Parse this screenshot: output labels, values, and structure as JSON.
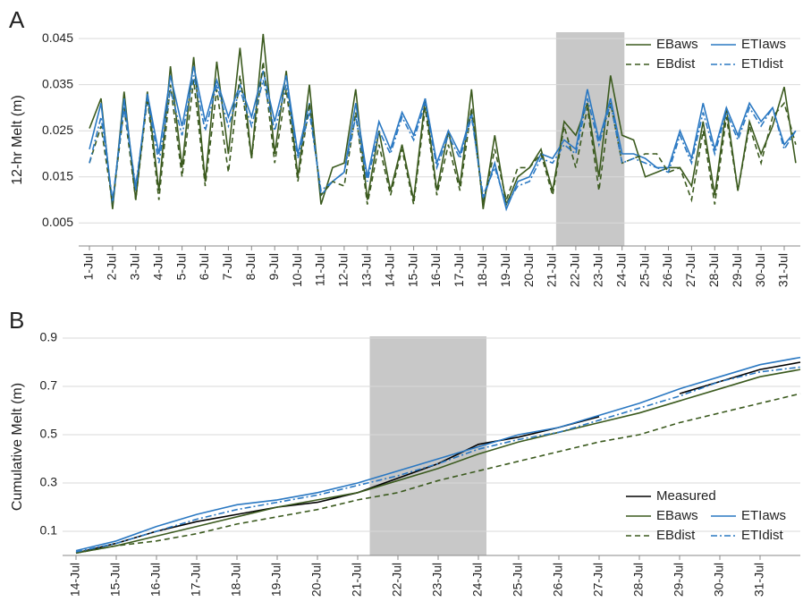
{
  "chart_data": [
    {
      "type": "line",
      "panel_label": "A",
      "y_label": "12-hr Melt (m)",
      "categories": [
        "1-Jul",
        null,
        "2-Jul",
        null,
        "3-Jul",
        null,
        "4-Jul",
        null,
        "5-Jul",
        null,
        "6-Jul",
        null,
        "7-Jul",
        null,
        "8-Jul",
        null,
        "9-Jul",
        null,
        "10-Jul",
        null,
        "11-Jul",
        null,
        "12-Jul",
        null,
        "13-Jul",
        null,
        "14-Jul",
        null,
        "15-Jul",
        null,
        "16-Jul",
        null,
        "17-Jul",
        null,
        "18-Jul",
        null,
        "19-Jul",
        null,
        "20-Jul",
        null,
        "21-Jul",
        null,
        "22-Jul",
        null,
        "23-Jul",
        null,
        "24-Jul",
        null,
        "25-Jul",
        null,
        "26-Jul",
        null,
        "27-Jul",
        null,
        "28-Jul",
        null,
        "29-Jul",
        null,
        "30-Jul",
        null,
        "31-Jul",
        null
      ],
      "ylim": [
        0,
        0.046
      ],
      "yticks": [
        0.005,
        0.015,
        0.025,
        0.035,
        0.045
      ],
      "grid": true,
      "legend": "top right",
      "shade": [
        40.3,
        46.2
      ],
      "series": [
        {
          "name": "EBaws",
          "color": "#3b5a1e",
          "linestyle": "solid",
          "values": [
            0.0255,
            0.032,
            0.008,
            0.0335,
            0.01,
            0.0335,
            0.012,
            0.039,
            0.017,
            0.041,
            0.014,
            0.04,
            0.02,
            0.043,
            0.019,
            0.046,
            0.02,
            0.038,
            0.015,
            0.035,
            0.009,
            0.017,
            0.018,
            0.034,
            0.01,
            0.025,
            0.012,
            0.022,
            0.01,
            0.032,
            0.012,
            0.025,
            0.013,
            0.034,
            0.008,
            0.024,
            0.009,
            0.015,
            0.017,
            0.021,
            0.012,
            0.027,
            0.024,
            0.031,
            0.015,
            0.037,
            0.024,
            0.023,
            0.015,
            0.016,
            0.017,
            0.017,
            0.013,
            0.027,
            0.011,
            0.03,
            0.012,
            0.027,
            0.02,
            0.026,
            0.0345,
            0.018
          ]
        },
        {
          "name": "ETIaws",
          "color": "#2a78c2",
          "linestyle": "solid",
          "values": [
            0.021,
            0.031,
            0.009,
            0.032,
            0.012,
            0.033,
            0.02,
            0.037,
            0.026,
            0.039,
            0.027,
            0.036,
            0.028,
            0.035,
            0.028,
            0.038,
            0.027,
            0.037,
            0.02,
            0.031,
            0.011,
            0.014,
            0.016,
            0.031,
            0.015,
            0.027,
            0.021,
            0.029,
            0.024,
            0.032,
            0.018,
            0.025,
            0.02,
            0.029,
            0.01,
            0.018,
            0.008,
            0.014,
            0.015,
            0.02,
            0.019,
            0.023,
            0.021,
            0.034,
            0.023,
            0.032,
            0.02,
            0.02,
            0.019,
            0.017,
            0.017,
            0.025,
            0.019,
            0.031,
            0.021,
            0.03,
            0.024,
            0.031,
            0.027,
            0.03,
            0.022,
            0.025
          ]
        },
        {
          "name": "EBdist",
          "color": "#3b5a1e",
          "linestyle": "dashed",
          "values": [
            0.018,
            0.026,
            0.009,
            0.03,
            0.01,
            0.032,
            0.01,
            0.035,
            0.015,
            0.036,
            0.013,
            0.034,
            0.016,
            0.037,
            0.019,
            0.04,
            0.018,
            0.034,
            0.014,
            0.031,
            0.011,
            0.014,
            0.013,
            0.029,
            0.009,
            0.022,
            0.011,
            0.021,
            0.009,
            0.03,
            0.011,
            0.022,
            0.012,
            0.03,
            0.009,
            0.021,
            0.01,
            0.017,
            0.017,
            0.02,
            0.011,
            0.026,
            0.017,
            0.03,
            0.012,
            0.031,
            0.018,
            0.019,
            0.02,
            0.02,
            0.016,
            0.017,
            0.01,
            0.025,
            0.009,
            0.028,
            0.012,
            0.026,
            0.018,
            0.028,
            0.031,
            0.022
          ]
        },
        {
          "name": "ETIdist",
          "color": "#2a78c2",
          "linestyle": "dashdot",
          "values": [
            0.018,
            0.028,
            0.01,
            0.03,
            0.013,
            0.032,
            0.018,
            0.034,
            0.024,
            0.037,
            0.025,
            0.035,
            0.026,
            0.034,
            0.026,
            0.036,
            0.025,
            0.035,
            0.019,
            0.029,
            0.012,
            0.014,
            0.016,
            0.028,
            0.014,
            0.025,
            0.02,
            0.028,
            0.023,
            0.031,
            0.017,
            0.024,
            0.019,
            0.028,
            0.011,
            0.017,
            0.009,
            0.013,
            0.014,
            0.019,
            0.018,
            0.022,
            0.02,
            0.032,
            0.022,
            0.031,
            0.018,
            0.019,
            0.018,
            0.017,
            0.016,
            0.024,
            0.018,
            0.029,
            0.02,
            0.029,
            0.023,
            0.03,
            0.026,
            0.03,
            0.021,
            0.025
          ]
        }
      ]
    },
    {
      "type": "line",
      "panel_label": "B",
      "y_label": "Cumulative Melt (m)",
      "categories": [
        "14-Jul",
        "15-Jul",
        "16-Jul",
        "17-Jul",
        "18-Jul",
        "19-Jul",
        "20-Jul",
        "21-Jul",
        "22-Jul",
        "23-Jul",
        "24-Jul",
        "25-Jul",
        "26-Jul",
        "27-Jul",
        "28-Jul",
        "29-Jul",
        "30-Jul",
        "31-Jul",
        null
      ],
      "ylim": [
        0,
        0.9
      ],
      "yticks": [
        0.1,
        0.3,
        0.5,
        0.7,
        0.9
      ],
      "grid": true,
      "legend": "bottom right",
      "shade": [
        7.3,
        10.2
      ],
      "series": [
        {
          "name": "Measured",
          "color": "#000000",
          "linestyle": "solid",
          "values": [
            0.01,
            0.05,
            0.1,
            0.14,
            0.17,
            0.2,
            0.22,
            0.26,
            0.32,
            0.38,
            0.46,
            0.49,
            0.53,
            0.575,
            null,
            0.67,
            0.72,
            0.77,
            0.8
          ]
        },
        {
          "name": "EBaws",
          "color": "#3b5a1e",
          "linestyle": "solid",
          "values": [
            0.01,
            0.04,
            0.08,
            0.12,
            0.16,
            0.2,
            0.23,
            0.26,
            0.31,
            0.36,
            0.42,
            0.47,
            0.51,
            0.55,
            0.59,
            0.64,
            0.69,
            0.74,
            0.77
          ]
        },
        {
          "name": "ETIaws",
          "color": "#2a78c2",
          "linestyle": "solid",
          "values": [
            0.02,
            0.06,
            0.12,
            0.17,
            0.21,
            0.23,
            0.26,
            0.3,
            0.35,
            0.4,
            0.45,
            0.5,
            0.53,
            0.58,
            0.63,
            0.69,
            0.74,
            0.79,
            0.82
          ]
        },
        {
          "name": "EBdist",
          "color": "#3b5a1e",
          "linestyle": "dashed",
          "values": [
            0.01,
            0.04,
            0.06,
            0.09,
            0.13,
            0.16,
            0.19,
            0.23,
            0.26,
            0.31,
            0.35,
            0.39,
            0.43,
            0.47,
            0.5,
            0.55,
            0.59,
            0.63,
            0.67
          ]
        },
        {
          "name": "ETIdist",
          "color": "#2a78c2",
          "linestyle": "dashdot",
          "values": [
            0.015,
            0.05,
            0.1,
            0.15,
            0.19,
            0.22,
            0.25,
            0.29,
            0.33,
            0.38,
            0.44,
            0.48,
            0.51,
            0.56,
            0.61,
            0.66,
            0.72,
            0.76,
            0.78
          ]
        }
      ]
    }
  ]
}
